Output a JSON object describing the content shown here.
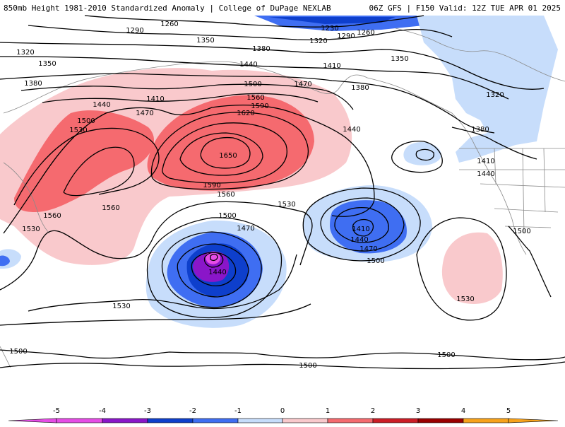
{
  "title_left": "850mb Height 1981-2010 Standardized Anomaly | College of DuPage NEXLAB",
  "title_right": "06Z GFS | F150 Valid: 12Z TUE APR 01 2025",
  "colors": {
    "neg5": "#e64de6",
    "neg4": "#8a16c9",
    "neg3": "#0e3fcc",
    "neg2": "#3f6ef2",
    "neg1": "#c7ddfb",
    "zero": "#ffffff",
    "pos1": "#f9c9cc",
    "pos2": "#f56a6f",
    "pos3": "#cc1d26",
    "pos4": "#9a0000",
    "pos5": "#f7a21b"
  },
  "colorbar": {
    "ticks": [
      "-5",
      "-4",
      "-3",
      "-2",
      "-1",
      "0",
      "1",
      "2",
      "3",
      "4",
      "5"
    ]
  },
  "contour_labels": [
    {
      "id": "c1260a",
      "text": "1260"
    },
    {
      "id": "c1290a",
      "text": "1290"
    },
    {
      "id": "c1230",
      "text": "1230"
    },
    {
      "id": "c1260b",
      "text": "1260"
    },
    {
      "id": "c1290b",
      "text": "1290"
    },
    {
      "id": "c1320a",
      "text": "1320"
    },
    {
      "id": "c1320b",
      "text": "1320"
    },
    {
      "id": "c1350a",
      "text": "1350"
    },
    {
      "id": "c1350b",
      "text": "1350"
    },
    {
      "id": "c1350c",
      "text": "1350"
    },
    {
      "id": "c1380a",
      "text": "1380"
    },
    {
      "id": "c1380b",
      "text": "1380"
    },
    {
      "id": "c1380c",
      "text": "1380"
    },
    {
      "id": "c1380d",
      "text": "1380"
    },
    {
      "id": "c1320c",
      "text": "1320"
    },
    {
      "id": "c1440a",
      "text": "1440"
    },
    {
      "id": "c1410a",
      "text": "1410"
    },
    {
      "id": "c1470a",
      "text": "1470"
    },
    {
      "id": "c1500a",
      "text": "1500"
    },
    {
      "id": "c1410b",
      "text": "1410"
    },
    {
      "id": "c1440b",
      "text": "1440"
    },
    {
      "id": "c1470b",
      "text": "1470"
    },
    {
      "id": "c1560a",
      "text": "1560"
    },
    {
      "id": "c1590a",
      "text": "1590"
    },
    {
      "id": "c1620",
      "text": "1620"
    },
    {
      "id": "c1500b",
      "text": "1500"
    },
    {
      "id": "c1530a",
      "text": "1530"
    },
    {
      "id": "c1650",
      "text": "1650"
    },
    {
      "id": "c1440c",
      "text": "1440"
    },
    {
      "id": "c1410c",
      "text": "1410"
    },
    {
      "id": "c1440d",
      "text": "1440"
    },
    {
      "id": "c1590b",
      "text": "1590"
    },
    {
      "id": "c1560b",
      "text": "1560"
    },
    {
      "id": "c1560c",
      "text": "1560"
    },
    {
      "id": "c1560d",
      "text": "1560"
    },
    {
      "id": "c1530b",
      "text": "1530"
    },
    {
      "id": "c1530c",
      "text": "1530"
    },
    {
      "id": "c1500c",
      "text": "1500"
    },
    {
      "id": "c1470c",
      "text": "1470"
    },
    {
      "id": "c1440e",
      "text": "1440"
    },
    {
      "id": "c1410d",
      "text": "1410"
    },
    {
      "id": "c1440f",
      "text": "1440"
    },
    {
      "id": "c1470d",
      "text": "1470"
    },
    {
      "id": "c1500d",
      "text": "1500"
    },
    {
      "id": "c1500e",
      "text": "1500"
    },
    {
      "id": "c1530d",
      "text": "1530"
    },
    {
      "id": "c1530e",
      "text": "1530"
    },
    {
      "id": "c1500f",
      "text": "1500"
    },
    {
      "id": "c1500g",
      "text": "1500"
    },
    {
      "id": "c1500h",
      "text": "1500"
    }
  ]
}
